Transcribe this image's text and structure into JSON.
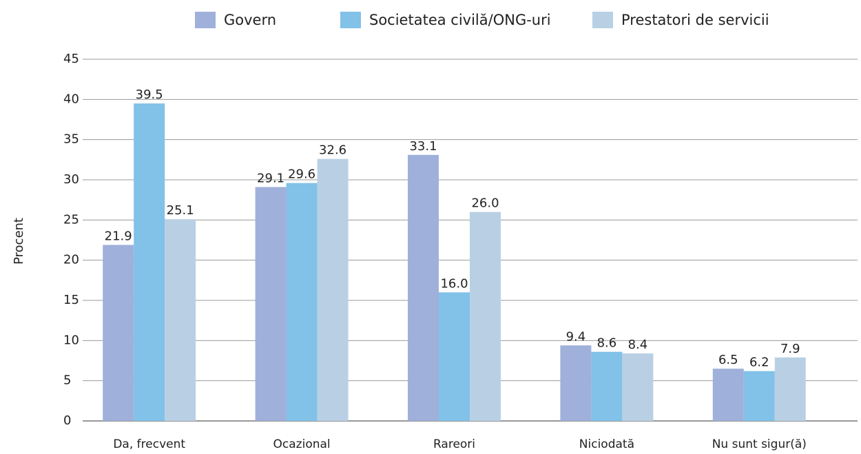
{
  "chart_data": {
    "type": "bar",
    "categories": [
      "Da, frecvent",
      "Ocazional",
      "Rareori",
      "Niciodată",
      "Nu sunt sigur(ă)"
    ],
    "series": [
      {
        "name": "Govern",
        "color": "#9fb0da",
        "values": [
          21.9,
          29.1,
          33.1,
          9.4,
          6.5
        ],
        "value_labels": [
          "21.9",
          "29.1",
          "33.1",
          "9.4",
          "6.5"
        ]
      },
      {
        "name": "Societatea civilă/ONG-uri",
        "color": "#82c1e8",
        "values": [
          39.5,
          29.6,
          16.0,
          8.6,
          6.2
        ],
        "value_labels": [
          "39.5",
          "29.6",
          "16.0",
          "8.6",
          "6.2"
        ]
      },
      {
        "name": "Prestatori de servicii",
        "color": "#b9d0e4",
        "values": [
          25.1,
          32.6,
          26.0,
          8.4,
          7.9
        ],
        "value_labels": [
          "25.1",
          "32.6",
          "26.0",
          "8.4",
          "7.9"
        ]
      }
    ],
    "y_label": "Procent",
    "ylim": [
      0,
      45
    ],
    "yticks": [
      0,
      5,
      10,
      15,
      20,
      25,
      30,
      35,
      40,
      45
    ],
    "grid": true,
    "legend": "top"
  }
}
